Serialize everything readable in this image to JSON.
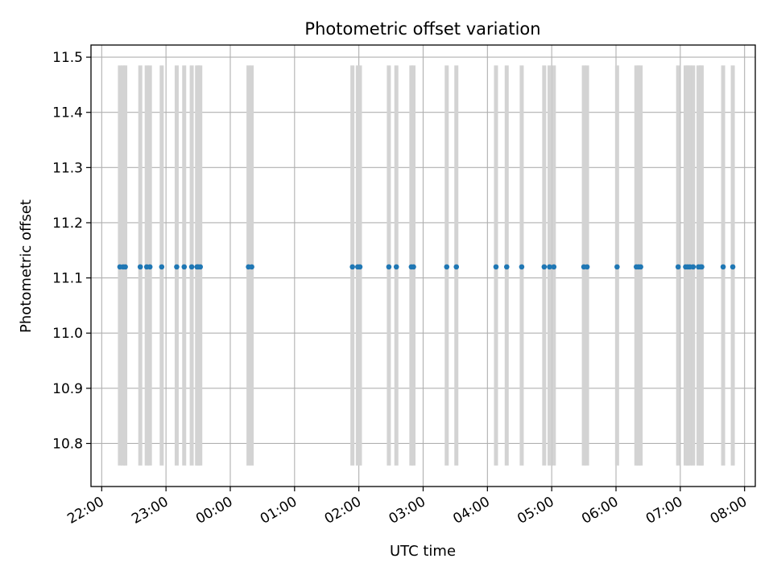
{
  "chart_data": {
    "type": "scatter",
    "title": "Photometric offset variation",
    "xlabel": "UTC time",
    "ylabel": "Photometric offset",
    "x_tick_labels": [
      "22:00",
      "23:00",
      "00:00",
      "01:00",
      "02:00",
      "03:00",
      "04:00",
      "05:00",
      "06:00",
      "07:00",
      "08:00"
    ],
    "y_ticks": [
      10.8,
      10.9,
      11.0,
      11.1,
      11.2,
      11.3,
      11.4,
      11.5
    ],
    "y_tick_labels": [
      "10.8",
      "10.9",
      "11.0",
      "11.1",
      "11.2",
      "11.3",
      "11.4",
      "11.5"
    ],
    "xlim": [
      "21:50",
      "08:10"
    ],
    "ylim": [
      10.722,
      11.522
    ],
    "grid": true,
    "errorbar_range": [
      10.76,
      11.485
    ],
    "series": [
      {
        "times": [
          "22:17",
          "22:20",
          "22:22",
          "22:36",
          "22:42",
          "22:45",
          "22:56",
          "23:10",
          "23:17",
          "23:24",
          "23:29",
          "23:30",
          "23:32",
          "00:17",
          "00:20",
          "01:54",
          "01:59",
          "02:01",
          "02:28",
          "02:35",
          "02:49",
          "02:51",
          "03:22",
          "03:31",
          "04:08",
          "04:18",
          "04:32",
          "04:53",
          "04:58",
          "05:02",
          "05:30",
          "05:33",
          "06:01",
          "06:19",
          "06:21",
          "06:23",
          "06:58",
          "07:05",
          "07:07",
          "07:09",
          "07:12",
          "07:17",
          "07:19",
          "07:20",
          "07:40",
          "07:49"
        ],
        "values": [
          11.12,
          11.12,
          11.12,
          11.12,
          11.12,
          11.12,
          11.12,
          11.12,
          11.12,
          11.12,
          11.12,
          11.12,
          11.12,
          11.12,
          11.12,
          11.12,
          11.12,
          11.12,
          11.12,
          11.12,
          11.12,
          11.12,
          11.12,
          11.12,
          11.12,
          11.12,
          11.12,
          11.12,
          11.12,
          11.12,
          11.12,
          11.12,
          11.12,
          11.12,
          11.12,
          11.12,
          11.12,
          11.12,
          11.12,
          11.12,
          11.12,
          11.12,
          11.12,
          11.12,
          11.12,
          11.12
        ]
      }
    ]
  },
  "colors": {
    "marker": "#1f77b4",
    "errorbar": "#d3d3d3",
    "grid": "#b0b0b0",
    "axis": "#000000"
  }
}
